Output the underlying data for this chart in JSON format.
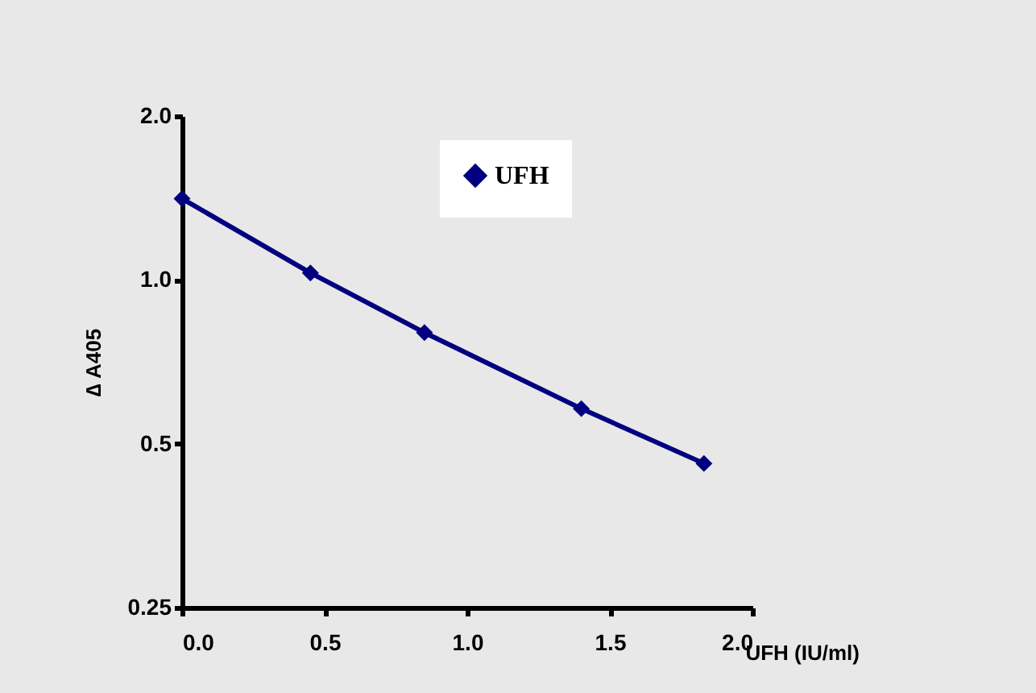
{
  "chart_data": {
    "type": "line",
    "xlabel": "UFH (IU/ml)",
    "ylabel": "∆ A405",
    "x": [
      0,
      0.45,
      0.85,
      1.4,
      1.83
    ],
    "series": [
      {
        "name": "UFH",
        "color": "#000080",
        "values": [
          1.41,
          1.03,
          0.8,
          0.58,
          0.46
        ]
      }
    ],
    "xlim": [
      0,
      2
    ],
    "xticks": [
      {
        "value": 0,
        "label": "0.0"
      },
      0.5,
      {
        "value": 1,
        "label": "1.0"
      },
      1.5,
      {
        "value": 2,
        "label": "2.0"
      }
    ],
    "ylim": [
      0.25,
      2
    ],
    "yticks": [
      0.25,
      0.5,
      {
        "value": 1,
        "label": "1.0"
      },
      {
        "value": 2,
        "label": "2.0"
      }
    ],
    "log": "y",
    "legend": "top",
    "marker": "diamond",
    "grid": false
  }
}
